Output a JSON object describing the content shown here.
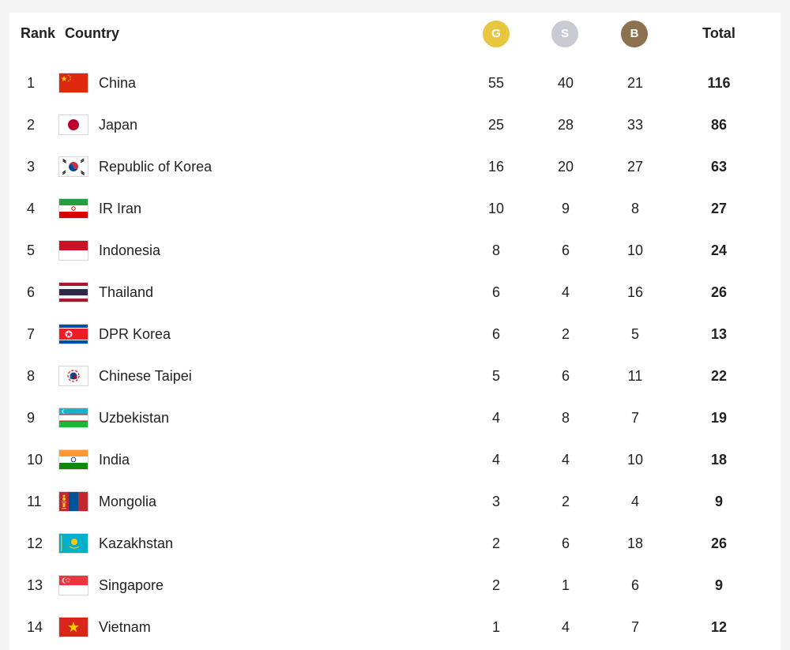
{
  "header": {
    "rank": "Rank",
    "country": "Country",
    "gold": "G",
    "silver": "S",
    "bronze": "B",
    "total": "Total"
  },
  "colors": {
    "gold": "#e9c63f",
    "silver": "#c9cad4",
    "bronze": "#8c7151"
  },
  "rows": [
    {
      "rank": "1",
      "country": "China",
      "flag": "china-flag-icon",
      "gold": "55",
      "silver": "40",
      "bronze": "21",
      "total": "116"
    },
    {
      "rank": "2",
      "country": "Japan",
      "flag": "japan-flag-icon",
      "gold": "25",
      "silver": "28",
      "bronze": "33",
      "total": "86"
    },
    {
      "rank": "3",
      "country": "Republic of Korea",
      "flag": "south-korea-flag-icon",
      "gold": "16",
      "silver": "20",
      "bronze": "27",
      "total": "63"
    },
    {
      "rank": "4",
      "country": "IR Iran",
      "flag": "iran-flag-icon",
      "gold": "10",
      "silver": "9",
      "bronze": "8",
      "total": "27"
    },
    {
      "rank": "5",
      "country": "Indonesia",
      "flag": "indonesia-flag-icon",
      "gold": "8",
      "silver": "6",
      "bronze": "10",
      "total": "24"
    },
    {
      "rank": "6",
      "country": "Thailand",
      "flag": "thailand-flag-icon",
      "gold": "6",
      "silver": "4",
      "bronze": "16",
      "total": "26"
    },
    {
      "rank": "7",
      "country": "DPR Korea",
      "flag": "north-korea-flag-icon",
      "gold": "6",
      "silver": "2",
      "bronze": "5",
      "total": "13"
    },
    {
      "rank": "8",
      "country": "Chinese Taipei",
      "flag": "chinese-taipei-flag-icon",
      "gold": "5",
      "silver": "6",
      "bronze": "11",
      "total": "22"
    },
    {
      "rank": "9",
      "country": "Uzbekistan",
      "flag": "uzbekistan-flag-icon",
      "gold": "4",
      "silver": "8",
      "bronze": "7",
      "total": "19"
    },
    {
      "rank": "10",
      "country": "India",
      "flag": "india-flag-icon",
      "gold": "4",
      "silver": "4",
      "bronze": "10",
      "total": "18"
    },
    {
      "rank": "11",
      "country": "Mongolia",
      "flag": "mongolia-flag-icon",
      "gold": "3",
      "silver": "2",
      "bronze": "4",
      "total": "9"
    },
    {
      "rank": "12",
      "country": "Kazakhstan",
      "flag": "kazakhstan-flag-icon",
      "gold": "2",
      "silver": "6",
      "bronze": "18",
      "total": "26"
    },
    {
      "rank": "13",
      "country": "Singapore",
      "flag": "singapore-flag-icon",
      "gold": "2",
      "silver": "1",
      "bronze": "6",
      "total": "9"
    },
    {
      "rank": "14",
      "country": "Vietnam",
      "flag": "vietnam-flag-icon",
      "gold": "1",
      "silver": "4",
      "bronze": "7",
      "total": "12"
    }
  ]
}
